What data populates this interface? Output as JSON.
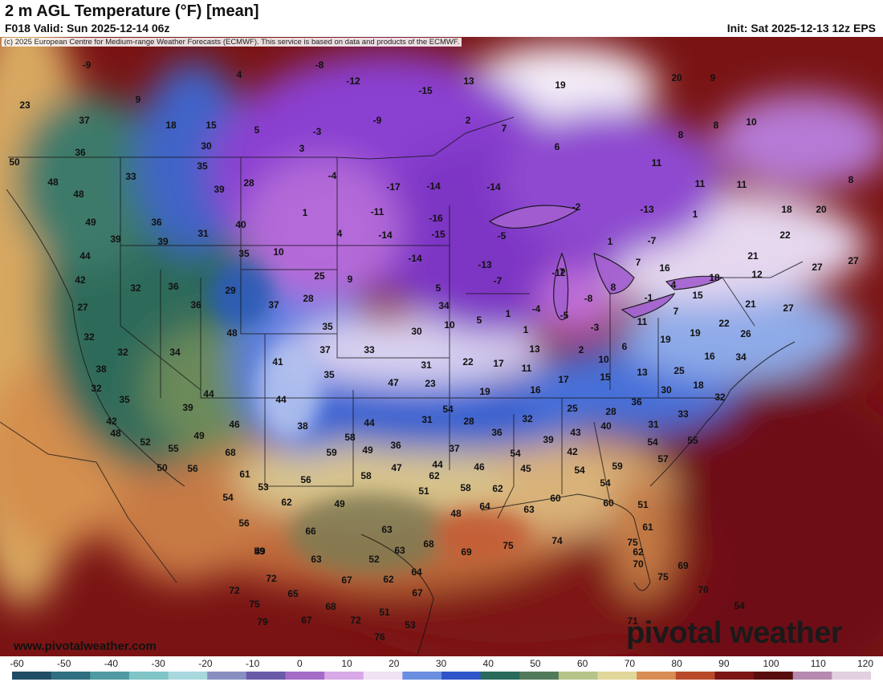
{
  "header": {
    "title": "2 m AGL Temperature (°F) [mean]",
    "valid": "F018 Valid: Sun 2025-12-14 06z",
    "init": "Init: Sat 2025-12-13 12z EPS"
  },
  "copyright": "(c) 2025 European Centre for Medium-range Weather Forecasts (ECMWF). This service is based on data and products of the ECMWF.",
  "website": "www.pivotalweather.com",
  "brand": "pivotal weather",
  "colorbar": {
    "ticks": [
      "-60",
      "-50",
      "-40",
      "-30",
      "-20",
      "-10",
      "0",
      "10",
      "20",
      "30",
      "40",
      "50",
      "60",
      "70",
      "80",
      "90",
      "100",
      "110",
      "120"
    ],
    "colors": [
      "#1f4d63",
      "#2f6f80",
      "#4f9aa3",
      "#7fc4c7",
      "#a8d8de",
      "#8890c2",
      "#6a5aa8",
      "#a46cc6",
      "#d7a9e6",
      "#f2e1f4",
      "#6a8fe0",
      "#2f55c9",
      "#2a6a5a",
      "#507a5a",
      "#b6c48a",
      "#e2d79a",
      "#d88d52",
      "#b84a2a",
      "#7d1515",
      "#5a0d0d",
      "#b68ab0",
      "#e2cfe0"
    ]
  },
  "temperatures": [
    {
      "text": "-9"
    },
    {
      "text": "-8"
    },
    {
      "text": "4"
    },
    {
      "text": "-12"
    },
    {
      "text": "-15"
    },
    {
      "text": "13"
    },
    {
      "text": "19"
    },
    {
      "text": "20"
    },
    {
      "text": "9"
    },
    {
      "text": "23"
    },
    {
      "text": "9"
    },
    {
      "text": "37"
    },
    {
      "text": "18"
    },
    {
      "text": "15"
    },
    {
      "text": "5"
    },
    {
      "text": "-3"
    },
    {
      "text": "-9"
    },
    {
      "text": "2"
    },
    {
      "text": "7"
    },
    {
      "text": "8"
    },
    {
      "text": "8"
    },
    {
      "text": "10"
    },
    {
      "text": "36"
    },
    {
      "text": "30"
    },
    {
      "text": "3"
    },
    {
      "text": "6"
    },
    {
      "text": "50"
    },
    {
      "text": "35"
    },
    {
      "text": "-4"
    },
    {
      "text": "11"
    },
    {
      "text": "48"
    },
    {
      "text": "33"
    },
    {
      "text": "39"
    },
    {
      "text": "28"
    },
    {
      "text": "-17"
    },
    {
      "text": "-14"
    },
    {
      "text": "-14"
    },
    {
      "text": "11"
    },
    {
      "text": "11"
    },
    {
      "text": "8"
    },
    {
      "text": "48"
    },
    {
      "text": "1"
    },
    {
      "text": "-11"
    },
    {
      "text": "-16"
    },
    {
      "text": "-2"
    },
    {
      "text": "-13"
    },
    {
      "text": "1"
    },
    {
      "text": "18"
    },
    {
      "text": "20"
    },
    {
      "text": "49"
    },
    {
      "text": "36"
    },
    {
      "text": "40"
    },
    {
      "text": "4"
    },
    {
      "text": "-14"
    },
    {
      "text": "-15"
    },
    {
      "text": "-5"
    },
    {
      "text": "1"
    },
    {
      "text": "-7"
    },
    {
      "text": "22"
    },
    {
      "text": "39"
    },
    {
      "text": "39"
    },
    {
      "text": "31"
    },
    {
      "text": "35"
    },
    {
      "text": "10"
    },
    {
      "text": "-14"
    },
    {
      "text": "-13"
    },
    {
      "text": "7"
    },
    {
      "text": "7"
    },
    {
      "text": "16"
    },
    {
      "text": "18"
    },
    {
      "text": "21"
    },
    {
      "text": "27"
    },
    {
      "text": "44"
    },
    {
      "text": "42"
    },
    {
      "text": "32"
    },
    {
      "text": "36"
    },
    {
      "text": "29"
    },
    {
      "text": "25"
    },
    {
      "text": "9"
    },
    {
      "text": "5"
    },
    {
      "text": "-7"
    },
    {
      "text": "-12"
    },
    {
      "text": "-8"
    },
    {
      "text": "8"
    },
    {
      "text": "4"
    },
    {
      "text": "12"
    },
    {
      "text": "27"
    },
    {
      "text": "27"
    },
    {
      "text": "36"
    },
    {
      "text": "37"
    },
    {
      "text": "28"
    },
    {
      "text": "34"
    },
    {
      "text": "1"
    },
    {
      "text": "-4"
    },
    {
      "text": "-5"
    },
    {
      "text": "-1"
    },
    {
      "text": "7"
    },
    {
      "text": "15"
    },
    {
      "text": "21"
    },
    {
      "text": "27"
    },
    {
      "text": "32"
    },
    {
      "text": "48"
    },
    {
      "text": "35"
    },
    {
      "text": "30"
    },
    {
      "text": "10"
    },
    {
      "text": "5"
    },
    {
      "text": "1"
    },
    {
      "text": "-3"
    },
    {
      "text": "11"
    },
    {
      "text": "19"
    },
    {
      "text": "19"
    },
    {
      "text": "22"
    },
    {
      "text": "26"
    },
    {
      "text": "32"
    },
    {
      "text": "34"
    },
    {
      "text": "37"
    },
    {
      "text": "33"
    },
    {
      "text": "22"
    },
    {
      "text": "13"
    },
    {
      "text": "2"
    },
    {
      "text": "6"
    },
    {
      "text": "16"
    },
    {
      "text": "34"
    },
    {
      "text": "38"
    },
    {
      "text": "41"
    },
    {
      "text": "35"
    },
    {
      "text": "31"
    },
    {
      "text": "17"
    },
    {
      "text": "11"
    },
    {
      "text": "10"
    },
    {
      "text": "13"
    },
    {
      "text": "25"
    },
    {
      "text": "32"
    },
    {
      "text": "47"
    },
    {
      "text": "23"
    },
    {
      "text": "19"
    },
    {
      "text": "16"
    },
    {
      "text": "17"
    },
    {
      "text": "15"
    },
    {
      "text": "18"
    },
    {
      "text": "35"
    },
    {
      "text": "44"
    },
    {
      "text": "44"
    },
    {
      "text": "30"
    },
    {
      "text": "32"
    },
    {
      "text": "39"
    },
    {
      "text": "54"
    },
    {
      "text": "25"
    },
    {
      "text": "28"
    },
    {
      "text": "36"
    },
    {
      "text": "33"
    },
    {
      "text": "42"
    },
    {
      "text": "46"
    },
    {
      "text": "38"
    },
    {
      "text": "44"
    },
    {
      "text": "31"
    },
    {
      "text": "28"
    },
    {
      "text": "32"
    },
    {
      "text": "31"
    },
    {
      "text": "48"
    },
    {
      "text": "49"
    },
    {
      "text": "58"
    },
    {
      "text": "36"
    },
    {
      "text": "39"
    },
    {
      "text": "43"
    },
    {
      "text": "40"
    },
    {
      "text": "54"
    },
    {
      "text": "55"
    },
    {
      "text": "52"
    },
    {
      "text": "55"
    },
    {
      "text": "68"
    },
    {
      "text": "59"
    },
    {
      "text": "49"
    },
    {
      "text": "36"
    },
    {
      "text": "37"
    },
    {
      "text": "42"
    },
    {
      "text": "50"
    },
    {
      "text": "56"
    },
    {
      "text": "61"
    },
    {
      "text": "58"
    },
    {
      "text": "47"
    },
    {
      "text": "44"
    },
    {
      "text": "46"
    },
    {
      "text": "54"
    },
    {
      "text": "45"
    },
    {
      "text": "54"
    },
    {
      "text": "59"
    },
    {
      "text": "57"
    },
    {
      "text": "53"
    },
    {
      "text": "56"
    },
    {
      "text": "51"
    },
    {
      "text": "58"
    },
    {
      "text": "62"
    },
    {
      "text": "62"
    },
    {
      "text": "54"
    },
    {
      "text": "54"
    },
    {
      "text": "62"
    },
    {
      "text": "49"
    },
    {
      "text": "48"
    },
    {
      "text": "64"
    },
    {
      "text": "63"
    },
    {
      "text": "60"
    },
    {
      "text": "60"
    },
    {
      "text": "51"
    },
    {
      "text": "56"
    },
    {
      "text": "66"
    },
    {
      "text": "49"
    },
    {
      "text": "63"
    },
    {
      "text": "61"
    },
    {
      "text": "59"
    },
    {
      "text": "63"
    },
    {
      "text": "52"
    },
    {
      "text": "63"
    },
    {
      "text": "68"
    },
    {
      "text": "69"
    },
    {
      "text": "75"
    },
    {
      "text": "74"
    },
    {
      "text": "75"
    },
    {
      "text": "62"
    },
    {
      "text": "72"
    },
    {
      "text": "67"
    },
    {
      "text": "62"
    },
    {
      "text": "64"
    },
    {
      "text": "70"
    },
    {
      "text": "69"
    },
    {
      "text": "75"
    },
    {
      "text": "72"
    },
    {
      "text": "65"
    },
    {
      "text": "67"
    },
    {
      "text": "70"
    },
    {
      "text": "75"
    },
    {
      "text": "68"
    },
    {
      "text": "51"
    },
    {
      "text": "54"
    },
    {
      "text": "79"
    },
    {
      "text": "67"
    },
    {
      "text": "72"
    },
    {
      "text": "53"
    },
    {
      "text": "71"
    },
    {
      "text": "76"
    },
    {
      "text": "54"
    }
  ]
}
